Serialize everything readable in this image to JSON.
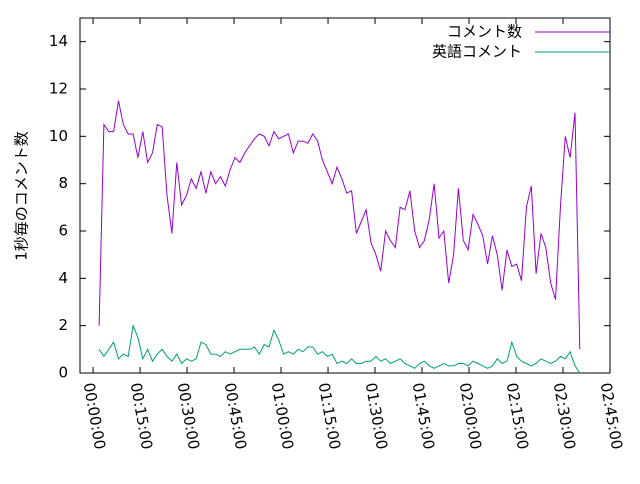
{
  "chart_data": {
    "type": "line",
    "ylabel": "1秒毎のコメント数",
    "x": [
      115,
      208,
      301,
      394,
      487,
      580,
      673,
      766,
      859,
      952,
      1045,
      1138,
      1231,
      1324,
      1417,
      1510,
      1603,
      1696,
      1789,
      1882,
      1975,
      2068,
      2161,
      2254,
      2347,
      2440,
      2533,
      2626,
      2719,
      2812,
      2905,
      2998,
      3091,
      3184,
      3277,
      3370,
      3463,
      3556,
      3649,
      3742,
      3835,
      3928,
      4021,
      4114,
      4207,
      4300,
      4393,
      4486,
      4579,
      4672,
      4765,
      4858,
      4951,
      5044,
      5137,
      5230,
      5323,
      5416,
      5509,
      5602,
      5695,
      5788,
      5881,
      5974,
      6067,
      6160,
      6253,
      6346,
      6439,
      6532,
      6625,
      6718,
      6811,
      6904,
      6997,
      7090,
      7183,
      7276,
      7369,
      7462,
      7555,
      7648,
      7741,
      7834,
      7927,
      8020,
      8113,
      8206,
      8299,
      8392,
      8485,
      8578,
      8671,
      8764,
      8857,
      8950,
      9043,
      9136,
      9229,
      9322
    ],
    "series": [
      {
        "name": "コメント数",
        "color": "#9400d3",
        "values": [
          2,
          10.5,
          10.2,
          10.2,
          11.5,
          10.5,
          10.1,
          10.1,
          9.1,
          10.2,
          8.9,
          9.3,
          10.5,
          10.4,
          7.5,
          5.9,
          8.9,
          7.1,
          7.5,
          8.2,
          7.8,
          8.5,
          7.6,
          8.5,
          8.0,
          8.3,
          7.9,
          8.6,
          9.1,
          8.9,
          9.3,
          9.6,
          9.9,
          10.1,
          10.0,
          9.6,
          10.2,
          9.9,
          10.0,
          10.1,
          9.3,
          9.8,
          9.8,
          9.7,
          10.1,
          9.8,
          9.0,
          8.5,
          8.0,
          8.7,
          8.2,
          7.6,
          7.7,
          5.9,
          6.4,
          6.9,
          5.5,
          5.0,
          4.3,
          6.0,
          5.6,
          5.3,
          7.0,
          6.9,
          7.7,
          6.0,
          5.3,
          5.6,
          6.5,
          8.0,
          5.7,
          6.0,
          3.8,
          5.0,
          7.8,
          5.6,
          5.2,
          6.7,
          6.3,
          5.8,
          4.6,
          5.8,
          5.0,
          3.5,
          5.2,
          4.5,
          4.6,
          3.9,
          7.0,
          7.9,
          4.2,
          5.9,
          5.3,
          3.8,
          3.1,
          7.0,
          10.0,
          9.1,
          11.0,
          1.0
        ]
      },
      {
        "name": "英語コメント",
        "color": "#009e73",
        "values": [
          1.0,
          0.7,
          1.0,
          1.3,
          0.6,
          0.8,
          0.7,
          2.0,
          1.5,
          0.6,
          1.0,
          0.5,
          0.8,
          1.0,
          0.7,
          0.5,
          0.8,
          0.4,
          0.6,
          0.5,
          0.6,
          1.3,
          1.2,
          0.8,
          0.8,
          0.7,
          0.9,
          0.8,
          0.9,
          1.0,
          1.0,
          1.0,
          1.1,
          0.8,
          1.2,
          1.1,
          1.8,
          1.4,
          0.8,
          0.9,
          0.8,
          1.0,
          0.9,
          1.1,
          1.1,
          0.8,
          0.9,
          0.7,
          0.8,
          0.4,
          0.5,
          0.4,
          0.6,
          0.4,
          0.4,
          0.5,
          0.5,
          0.7,
          0.5,
          0.6,
          0.4,
          0.5,
          0.6,
          0.4,
          0.3,
          0.2,
          0.4,
          0.5,
          0.3,
          0.2,
          0.3,
          0.4,
          0.3,
          0.3,
          0.4,
          0.4,
          0.3,
          0.5,
          0.4,
          0.3,
          0.2,
          0.3,
          0.6,
          0.4,
          0.5,
          1.3,
          0.7,
          0.5,
          0.4,
          0.3,
          0.4,
          0.6,
          0.5,
          0.4,
          0.5,
          0.7,
          0.6,
          0.9,
          0.3,
          0.0
        ]
      }
    ],
    "xlim": [
      -250,
      9900
    ],
    "xticks": [
      {
        "value": 0,
        "label": "00:00:00"
      },
      {
        "value": 900,
        "label": "00:15:00"
      },
      {
        "value": 1800,
        "label": "00:30:00"
      },
      {
        "value": 2700,
        "label": "00:45:00"
      },
      {
        "value": 3600,
        "label": "01:00:00"
      },
      {
        "value": 4500,
        "label": "01:15:00"
      },
      {
        "value": 5400,
        "label": "01:30:00"
      },
      {
        "value": 6300,
        "label": "01:45:00"
      },
      {
        "value": 7200,
        "label": "02:00:00"
      },
      {
        "value": 8100,
        "label": "02:15:00"
      },
      {
        "value": 9000,
        "label": "02:30:00"
      },
      {
        "value": 9900,
        "label": "02:45:00"
      }
    ],
    "ylim": [
      0,
      15
    ],
    "yticks": [
      0,
      2,
      4,
      6,
      8,
      10,
      12,
      14
    ],
    "legend": "top-right"
  }
}
